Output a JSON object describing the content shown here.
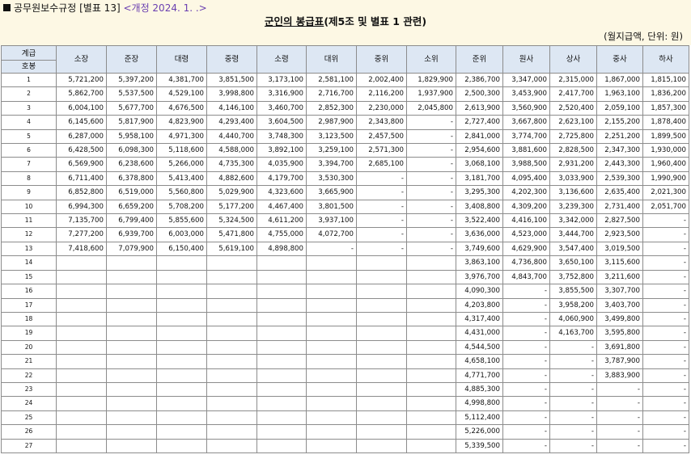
{
  "header": {
    "regulation": "공무원보수규정",
    "annex": "[별표 13]",
    "revision": "<개정 2024. 1. .>",
    "title_underlined": "군인의 봉급표",
    "title_rest": "(제5조 및 별표 1 관련)",
    "unit": "(월지급액, 단위: 원)"
  },
  "table": {
    "corner_top": "계급",
    "corner_bottom": "호봉",
    "columns": [
      "소장",
      "준장",
      "대령",
      "중령",
      "소령",
      "대위",
      "중위",
      "소위",
      "준위",
      "원사",
      "상사",
      "중사",
      "하사"
    ],
    "rows": [
      {
        "step": "1",
        "values": [
          "5,721,200",
          "5,397,200",
          "4,381,700",
          "3,851,500",
          "3,173,100",
          "2,581,100",
          "2,002,400",
          "1,829,900",
          "2,386,700",
          "3,347,000",
          "2,315,000",
          "1,867,000",
          "1,815,100"
        ]
      },
      {
        "step": "2",
        "values": [
          "5,862,700",
          "5,537,500",
          "4,529,100",
          "3,998,800",
          "3,316,900",
          "2,716,700",
          "2,116,200",
          "1,937,900",
          "2,500,300",
          "3,453,900",
          "2,417,700",
          "1,963,100",
          "1,836,200"
        ]
      },
      {
        "step": "3",
        "values": [
          "6,004,100",
          "5,677,700",
          "4,676,500",
          "4,146,100",
          "3,460,700",
          "2,852,300",
          "2,230,000",
          "2,045,800",
          "2,613,900",
          "3,560,900",
          "2,520,400",
          "2,059,100",
          "1,857,300"
        ]
      },
      {
        "step": "4",
        "values": [
          "6,145,600",
          "5,817,900",
          "4,823,900",
          "4,293,400",
          "3,604,500",
          "2,987,900",
          "2,343,800",
          "-",
          "2,727,400",
          "3,667,800",
          "2,623,100",
          "2,155,200",
          "1,878,400"
        ]
      },
      {
        "step": "5",
        "values": [
          "6,287,000",
          "5,958,100",
          "4,971,300",
          "4,440,700",
          "3,748,300",
          "3,123,500",
          "2,457,500",
          "-",
          "2,841,000",
          "3,774,700",
          "2,725,800",
          "2,251,200",
          "1,899,500"
        ]
      },
      {
        "step": "6",
        "values": [
          "6,428,500",
          "6,098,300",
          "5,118,600",
          "4,588,000",
          "3,892,100",
          "3,259,100",
          "2,571,300",
          "-",
          "2,954,600",
          "3,881,600",
          "2,828,500",
          "2,347,300",
          "1,930,000"
        ]
      },
      {
        "step": "7",
        "values": [
          "6,569,900",
          "6,238,600",
          "5,266,000",
          "4,735,300",
          "4,035,900",
          "3,394,700",
          "2,685,100",
          "-",
          "3,068,100",
          "3,988,500",
          "2,931,200",
          "2,443,300",
          "1,960,400"
        ]
      },
      {
        "step": "8",
        "values": [
          "6,711,400",
          "6,378,800",
          "5,413,400",
          "4,882,600",
          "4,179,700",
          "3,530,300",
          "-",
          "-",
          "3,181,700",
          "4,095,400",
          "3,033,900",
          "2,539,300",
          "1,990,900"
        ]
      },
      {
        "step": "9",
        "values": [
          "6,852,800",
          "6,519,000",
          "5,560,800",
          "5,029,900",
          "4,323,600",
          "3,665,900",
          "-",
          "-",
          "3,295,300",
          "4,202,300",
          "3,136,600",
          "2,635,400",
          "2,021,300"
        ]
      },
      {
        "step": "10",
        "values": [
          "6,994,300",
          "6,659,200",
          "5,708,200",
          "5,177,200",
          "4,467,400",
          "3,801,500",
          "-",
          "-",
          "3,408,800",
          "4,309,200",
          "3,239,300",
          "2,731,400",
          "2,051,700"
        ]
      },
      {
        "step": "11",
        "values": [
          "7,135,700",
          "6,799,400",
          "5,855,600",
          "5,324,500",
          "4,611,200",
          "3,937,100",
          "-",
          "-",
          "3,522,400",
          "4,416,100",
          "3,342,000",
          "2,827,500",
          "-"
        ]
      },
      {
        "step": "12",
        "values": [
          "7,277,200",
          "6,939,700",
          "6,003,000",
          "5,471,800",
          "4,755,000",
          "4,072,700",
          "-",
          "-",
          "3,636,000",
          "4,523,000",
          "3,444,700",
          "2,923,500",
          "-"
        ]
      },
      {
        "step": "13",
        "values": [
          "7,418,600",
          "7,079,900",
          "6,150,400",
          "5,619,100",
          "4,898,800",
          "-",
          "-",
          "-",
          "3,749,600",
          "4,629,900",
          "3,547,400",
          "3,019,500",
          "-"
        ]
      },
      {
        "step": "14",
        "values": [
          "",
          "",
          "",
          "",
          "",
          "",
          "",
          "",
          "3,863,100",
          "4,736,800",
          "3,650,100",
          "3,115,600",
          "-"
        ]
      },
      {
        "step": "15",
        "values": [
          "",
          "",
          "",
          "",
          "",
          "",
          "",
          "",
          "3,976,700",
          "4,843,700",
          "3,752,800",
          "3,211,600",
          "-"
        ]
      },
      {
        "step": "16",
        "values": [
          "",
          "",
          "",
          "",
          "",
          "",
          "",
          "",
          "4,090,300",
          "-",
          "3,855,500",
          "3,307,700",
          "-"
        ]
      },
      {
        "step": "17",
        "values": [
          "",
          "",
          "",
          "",
          "",
          "",
          "",
          "",
          "4,203,800",
          "-",
          "3,958,200",
          "3,403,700",
          "-"
        ]
      },
      {
        "step": "18",
        "values": [
          "",
          "",
          "",
          "",
          "",
          "",
          "",
          "",
          "4,317,400",
          "-",
          "4,060,900",
          "3,499,800",
          "-"
        ]
      },
      {
        "step": "19",
        "values": [
          "",
          "",
          "",
          "",
          "",
          "",
          "",
          "",
          "4,431,000",
          "-",
          "4,163,700",
          "3,595,800",
          "-"
        ]
      },
      {
        "step": "20",
        "values": [
          "",
          "",
          "",
          "",
          "",
          "",
          "",
          "",
          "4,544,500",
          "-",
          "-",
          "3,691,800",
          "-"
        ]
      },
      {
        "step": "21",
        "values": [
          "",
          "",
          "",
          "",
          "",
          "",
          "",
          "",
          "4,658,100",
          "-",
          "-",
          "3,787,900",
          "-"
        ]
      },
      {
        "step": "22",
        "values": [
          "",
          "",
          "",
          "",
          "",
          "",
          "",
          "",
          "4,771,700",
          "-",
          "-",
          "3,883,900",
          "-"
        ]
      },
      {
        "step": "23",
        "values": [
          "",
          "",
          "",
          "",
          "",
          "",
          "",
          "",
          "4,885,300",
          "-",
          "-",
          "-",
          "-"
        ]
      },
      {
        "step": "24",
        "values": [
          "",
          "",
          "",
          "",
          "",
          "",
          "",
          "",
          "4,998,800",
          "-",
          "-",
          "-",
          "-"
        ]
      },
      {
        "step": "25",
        "values": [
          "",
          "",
          "",
          "",
          "",
          "",
          "",
          "",
          "5,112,400",
          "-",
          "-",
          "-",
          "-"
        ]
      },
      {
        "step": "26",
        "values": [
          "",
          "",
          "",
          "",
          "",
          "",
          "",
          "",
          "5,226,000",
          "-",
          "-",
          "-",
          "-"
        ]
      },
      {
        "step": "27",
        "values": [
          "",
          "",
          "",
          "",
          "",
          "",
          "",
          "",
          "5,339,500",
          "-",
          "-",
          "-",
          "-"
        ]
      }
    ]
  }
}
